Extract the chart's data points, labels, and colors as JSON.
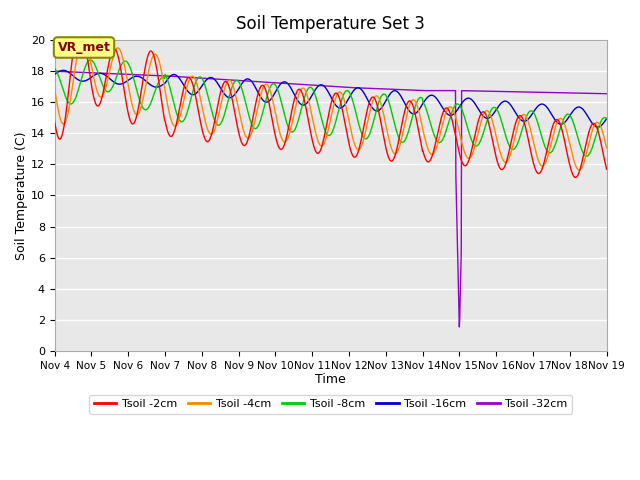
{
  "title": "Soil Temperature Set 3",
  "xlabel": "Time",
  "ylabel": "Soil Temperature (C)",
  "ylim": [
    0,
    20
  ],
  "xlim_days": [
    0,
    15
  ],
  "background_color": "#e8e8e8",
  "grid_color": "#ffffff",
  "series": {
    "Tsoil -2cm": {
      "color": "#ff0000",
      "depth_factor": 1.0
    },
    "Tsoil -4cm": {
      "color": "#ff8800",
      "depth_factor": 0.9
    },
    "Tsoil -8cm": {
      "color": "#00cc00",
      "depth_factor": 0.7
    },
    "Tsoil -16cm": {
      "color": "#0000cc",
      "depth_factor": 0.4
    },
    "Tsoil -32cm": {
      "color": "#9900cc",
      "depth_factor": 0.1
    }
  },
  "x_tick_labels": [
    "Nov 4",
    "Nov 5",
    "Nov 6",
    "Nov 7",
    "Nov 8",
    "Nov 9",
    "Nov 10",
    "Nov 11",
    "Nov 12",
    "Nov 13",
    "Nov 14",
    "Nov 15",
    "Nov 16",
    "Nov 17",
    "Nov 18",
    "Nov 19"
  ],
  "vr_met_label": "VR_met",
  "legend_entries": [
    "Tsoil -2cm",
    "Tsoil -4cm",
    "Tsoil -8cm",
    "Tsoil -16cm",
    "Tsoil -32cm"
  ],
  "legend_colors": [
    "#ff0000",
    "#ff8800",
    "#00cc00",
    "#0000cc",
    "#9900cc"
  ]
}
